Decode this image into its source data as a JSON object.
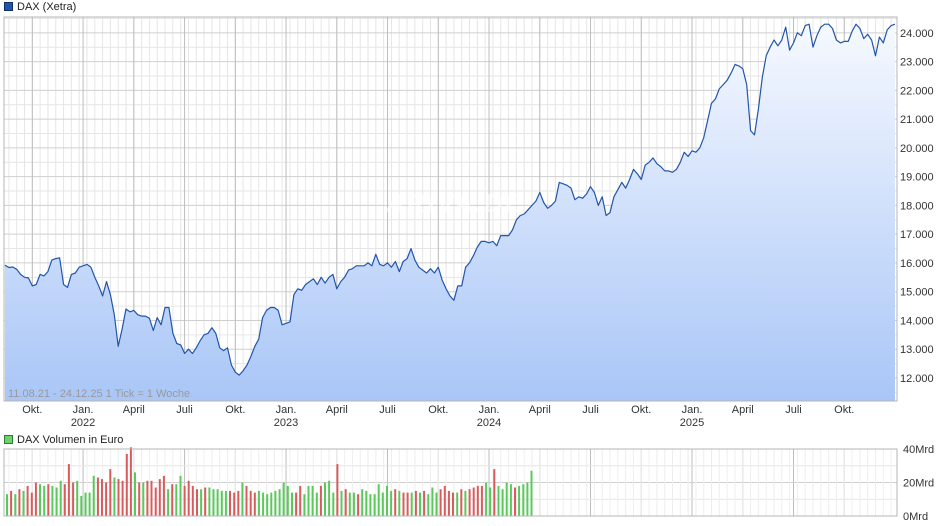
{
  "chart_data": [
    {
      "type": "area",
      "legend": "DAX (Xetra)",
      "line_color": "#2255aa",
      "fill_top": "#f6f9ff",
      "fill_bottom": "#a9c6f7",
      "watermark": "ARIVA.DE",
      "footer_note": "11.08.21 - 24.12.25   1 Tick = 1 Woche",
      "ylim": [
        11200,
        24550
      ],
      "y_ticks": [
        {
          "value": 12000,
          "label": "12.000"
        },
        {
          "value": 13000,
          "label": "13.000"
        },
        {
          "value": 14000,
          "label": "14.000"
        },
        {
          "value": 15000,
          "label": "15.000"
        },
        {
          "value": 16000,
          "label": "16.000"
        },
        {
          "value": 17000,
          "label": "17.000"
        },
        {
          "value": 18000,
          "label": "18.000"
        },
        {
          "value": 19000,
          "label": "19.000"
        },
        {
          "value": 20000,
          "label": "20.000"
        },
        {
          "value": 21000,
          "label": "21.000"
        },
        {
          "value": 22000,
          "label": "22.000"
        },
        {
          "value": 23000,
          "label": "23.000"
        },
        {
          "value": 24000,
          "label": "24.000"
        }
      ],
      "x_ticks": [
        {
          "week": 7,
          "label": "Okt."
        },
        {
          "week": 20,
          "label": "Jan.",
          "year": "2022"
        },
        {
          "week": 33,
          "label": "April"
        },
        {
          "week": 46,
          "label": "Juli"
        },
        {
          "week": 59,
          "label": "Okt."
        },
        {
          "week": 72,
          "label": "Jan.",
          "year": "2023"
        },
        {
          "week": 85,
          "label": "April"
        },
        {
          "week": 98,
          "label": "Juli"
        },
        {
          "week": 111,
          "label": "Okt."
        },
        {
          "week": 124,
          "label": "Jan.",
          "year": "2024"
        },
        {
          "week": 137,
          "label": "April"
        },
        {
          "week": 150,
          "label": "Juli"
        },
        {
          "week": 163,
          "label": "Okt."
        },
        {
          "week": 176,
          "label": "Jan.",
          "year": "2025"
        },
        {
          "week": 189,
          "label": "April"
        },
        {
          "week": 202,
          "label": "Juli"
        },
        {
          "week": 215,
          "label": "Okt."
        }
      ],
      "x_max_week": 228,
      "values": [
        15920,
        15840,
        15860,
        15780,
        15600,
        15500,
        15480,
        15200,
        15250,
        15600,
        15550,
        15700,
        16100,
        16150,
        16180,
        15250,
        15150,
        15600,
        15650,
        15850,
        15900,
        15950,
        15850,
        15500,
        15200,
        14850,
        15350,
        14900,
        14200,
        13100,
        13700,
        14400,
        14300,
        14350,
        14200,
        14150,
        14150,
        14080,
        13650,
        14100,
        13850,
        14450,
        14450,
        13550,
        13200,
        13150,
        12850,
        13000,
        12850,
        13050,
        13300,
        13500,
        13550,
        13750,
        13550,
        13050,
        12950,
        13050,
        12450,
        12200,
        12100,
        12250,
        12450,
        12750,
        13100,
        13350,
        14100,
        14350,
        14450,
        14450,
        14350,
        13850,
        13900,
        13950,
        14900,
        15100,
        15050,
        15250,
        15350,
        15450,
        15250,
        15500,
        15300,
        15500,
        15600,
        15100,
        15350,
        15500,
        15750,
        15800,
        15900,
        15900,
        15900,
        16000,
        15900,
        16300,
        15950,
        15900,
        16000,
        15850,
        16050,
        15700,
        16050,
        16150,
        16500,
        16100,
        15850,
        15750,
        15650,
        15800,
        15650,
        15850,
        15400,
        15100,
        14850,
        14700,
        15200,
        15200,
        15850,
        16000,
        16250,
        16550,
        16750,
        16750,
        16700,
        16750,
        16600,
        16950,
        16950,
        16950,
        17150,
        17500,
        17650,
        17700,
        17850,
        18000,
        18150,
        18450,
        18100,
        17900,
        18000,
        18150,
        18800,
        18750,
        18700,
        18600,
        18200,
        18300,
        18250,
        18400,
        18650,
        18450,
        18000,
        18300,
        17650,
        17750,
        18300,
        18550,
        18800,
        18600,
        18900,
        19250,
        19100,
        18900,
        19400,
        19500,
        19650,
        19450,
        19350,
        19200,
        19200,
        19150,
        19250,
        19500,
        19850,
        19700,
        19900,
        19850,
        20000,
        20350,
        20950,
        21550,
        21700,
        22050,
        22200,
        22350,
        22600,
        22900,
        22850,
        22750,
        22200,
        20600,
        20450,
        21350,
        22450,
        23200,
        23500,
        23750,
        23550,
        23750,
        24200,
        23400,
        23650,
        24000,
        23900,
        24250,
        24300,
        23500,
        23900,
        24200,
        24300,
        24300,
        24150,
        23750,
        23650,
        23700,
        23700,
        24050,
        24300,
        24150,
        23800,
        23950,
        23750,
        23200,
        23850,
        23650,
        24100,
        24250,
        24300
      ]
    },
    {
      "type": "bar",
      "legend": "DAX Volumen in Euro",
      "legend_color": "#44aa44",
      "up_color": "#5bc85b",
      "down_color": "#d95c5c",
      "ylim": [
        0,
        40
      ],
      "y_ticks": [
        {
          "value": 0,
          "label": "0Mrd"
        },
        {
          "value": 20,
          "label": "20Mrd"
        },
        {
          "value": 40,
          "label": "40Mrd"
        }
      ],
      "values": [
        13,
        15,
        13,
        16,
        15,
        18,
        14,
        20,
        19,
        18,
        19,
        18,
        17,
        21,
        19,
        31,
        20,
        21,
        12,
        14,
        14,
        24,
        23,
        22,
        20,
        28,
        23,
        22,
        21,
        37,
        41,
        26,
        20,
        20,
        21,
        21,
        17,
        22,
        24,
        16,
        19,
        19,
        24,
        18,
        21,
        18,
        16,
        16,
        17,
        17,
        16,
        16,
        15,
        15,
        15,
        14,
        15,
        20,
        18,
        15,
        14,
        15,
        14,
        13,
        14,
        15,
        16,
        20,
        18,
        14,
        14,
        18,
        13,
        18,
        18,
        14,
        18,
        20,
        21,
        14,
        31,
        15,
        16,
        14,
        14,
        13,
        16,
        15,
        13,
        13,
        19,
        14,
        18,
        15,
        16,
        15,
        14,
        14,
        14,
        15,
        14,
        15,
        13,
        17,
        14,
        16,
        18,
        15,
        14,
        14,
        16,
        15,
        16,
        17,
        18,
        18,
        20,
        17,
        28,
        18,
        16,
        20,
        19,
        17,
        18,
        19,
        20,
        27
      ],
      "up": [
        1,
        0,
        1,
        0,
        1,
        0,
        0,
        0,
        1,
        1,
        0,
        1,
        1,
        1,
        0,
        0,
        0,
        1,
        1,
        1,
        1,
        1,
        0,
        0,
        0,
        0,
        1,
        0,
        0,
        0,
        0,
        1,
        0,
        1,
        0,
        0,
        0,
        0,
        0,
        1,
        0,
        1,
        1,
        0,
        0,
        0,
        0,
        1,
        0,
        1,
        1,
        1,
        1,
        1,
        0,
        0,
        0,
        1,
        0,
        0,
        0,
        1,
        1,
        1,
        1,
        1,
        1,
        1,
        1,
        1,
        0,
        0,
        1,
        1,
        1,
        1,
        0,
        1,
        1,
        1,
        0,
        1,
        0,
        1,
        1,
        0,
        1,
        1,
        1,
        1,
        1,
        1,
        1,
        1,
        0,
        1,
        0,
        0,
        1,
        0,
        1,
        0,
        1,
        1,
        1,
        0,
        0,
        0,
        0,
        1,
        0,
        1,
        0,
        0,
        0,
        0,
        1,
        1,
        0,
        1,
        1,
        1,
        1,
        0,
        1,
        1,
        1,
        1
      ]
    }
  ]
}
